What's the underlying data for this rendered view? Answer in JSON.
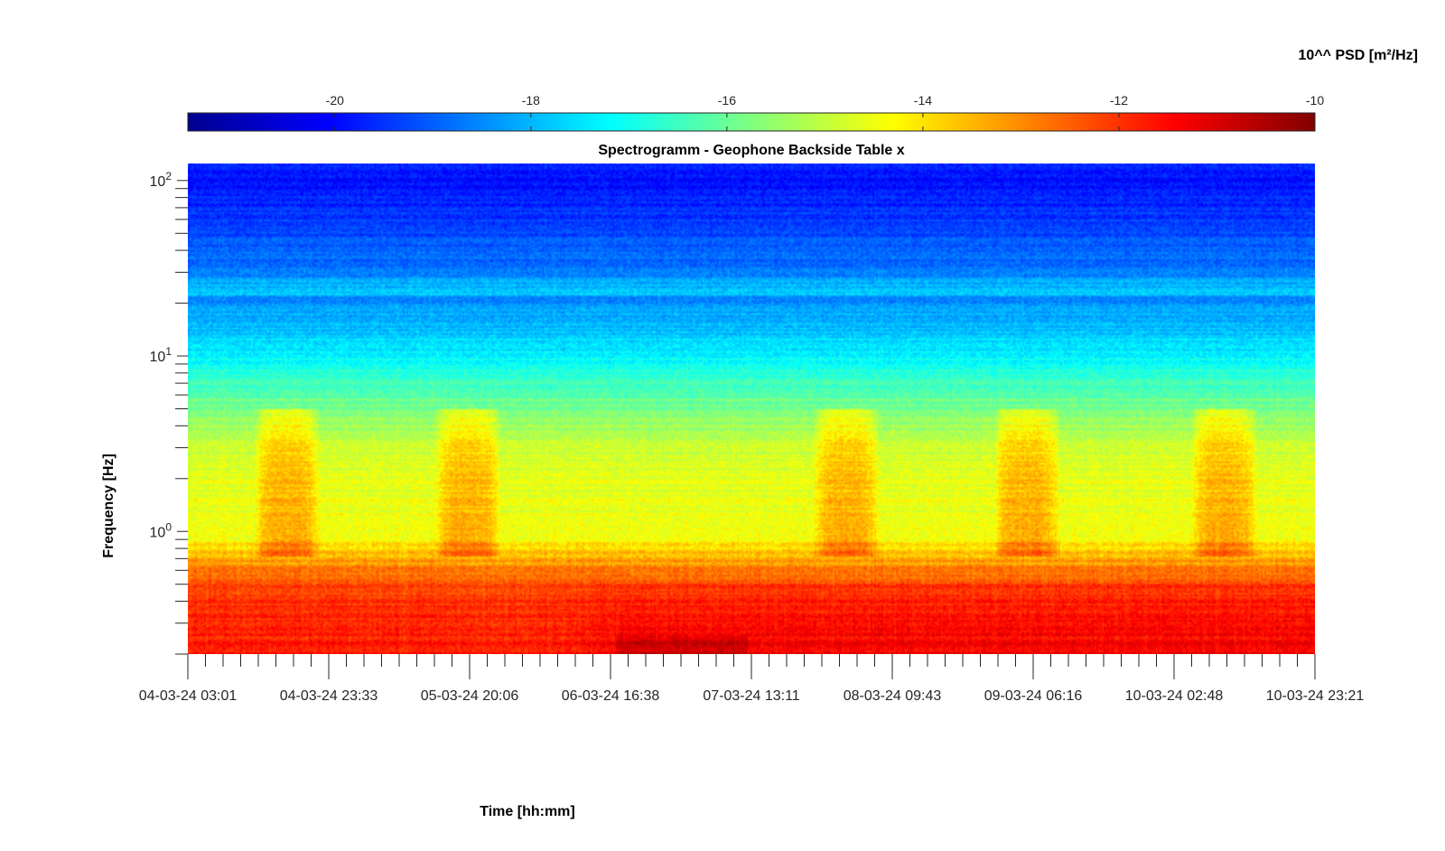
{
  "chart_data": {
    "type": "heatmap",
    "title": "Spectrogramm - Geophone Backside Table x",
    "xlabel": "Time [hh:mm]",
    "ylabel": "Frequency [Hz]",
    "x_ticks": [
      "04-03-24 03:01",
      "04-03-24 23:33",
      "05-03-24 20:06",
      "06-03-24 16:38",
      "07-03-24 13:11",
      "08-03-24 09:43",
      "09-03-24 06:16",
      "10-03-24 02:48",
      "10-03-24 23:21"
    ],
    "xlim": [
      "04-03-24 03:01",
      "10-03-24 23:21"
    ],
    "y_scale": "log",
    "ylim": [
      0.2,
      125
    ],
    "y_ticks": [
      {
        "base": "10",
        "exp": "0",
        "value": 1
      },
      {
        "base": "10",
        "exp": "1",
        "value": 10
      },
      {
        "base": "10",
        "exp": "2",
        "value": 100
      }
    ],
    "colorbar": {
      "label": "10^^ PSD [m²/Hz]",
      "range": [
        -21.5,
        -10
      ],
      "ticks": [
        "-20",
        "-18",
        "-16",
        "-14",
        "-12",
        "-10"
      ],
      "tick_values": [
        -20,
        -18,
        -16,
        -14,
        -12,
        -10
      ],
      "colormap": "jet",
      "position": "top"
    },
    "psd_profile": {
      "freq_hz": [
        0.2,
        0.3,
        0.5,
        0.7,
        0.9,
        1.5,
        3,
        5,
        8,
        12,
        20,
        40,
        60,
        100,
        125
      ],
      "log10_psd": [
        -11.7,
        -11.9,
        -12.2,
        -13.4,
        -14.3,
        -14.6,
        -14.9,
        -15.8,
        -16.8,
        -17.6,
        -18.4,
        -19.0,
        -19.4,
        -19.9,
        -19.6
      ]
    },
    "daytime_activity_bands": [
      {
        "start_day": 0.4,
        "end_day": 0.8
      },
      {
        "start_day": 1.5,
        "end_day": 1.9
      },
      {
        "start_day": 3.8,
        "end_day": 4.2
      },
      {
        "start_day": 4.9,
        "end_day": 5.3
      },
      {
        "start_day": 6.1,
        "end_day": 6.5
      }
    ]
  }
}
